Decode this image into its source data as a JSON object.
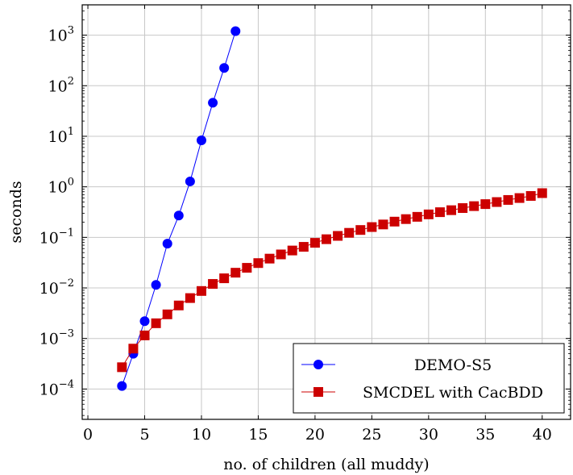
{
  "chart_data": {
    "type": "line",
    "xlabel": "no. of children (all muddy)",
    "ylabel": "seconds",
    "xlim": [
      -0.5,
      42.5
    ],
    "xticks": [
      0,
      5,
      10,
      15,
      20,
      25,
      30,
      35,
      40
    ],
    "yscale": "log",
    "ylim_exp": [
      -4.6,
      3.6
    ],
    "yticks_exp": [
      -4,
      -3,
      -2,
      -1,
      0,
      1,
      2,
      3
    ],
    "grid": true,
    "legend_position": "bottom-right",
    "series": [
      {
        "name": "DEMO-S5",
        "color": "#0000ff",
        "marker": "circle",
        "x": [
          3,
          4,
          5,
          6,
          7,
          8,
          9,
          10,
          11,
          12,
          13
        ],
        "y": [
          0.000115,
          0.0005,
          0.0022,
          0.0115,
          0.075,
          0.27,
          1.28,
          8.3,
          46,
          225,
          1200
        ]
      },
      {
        "name": "SMCDEL with CacBDD",
        "color": "#cc0000",
        "marker": "square",
        "x": [
          3,
          4,
          5,
          6,
          7,
          8,
          9,
          10,
          11,
          12,
          13,
          14,
          15,
          16,
          17,
          18,
          19,
          20,
          21,
          22,
          23,
          24,
          25,
          26,
          27,
          28,
          29,
          30,
          31,
          32,
          33,
          34,
          35,
          36,
          37,
          38,
          39,
          40
        ],
        "y": [
          0.00027,
          0.00063,
          0.00115,
          0.002,
          0.003,
          0.0045,
          0.0063,
          0.0087,
          0.012,
          0.0155,
          0.02,
          0.025,
          0.031,
          0.038,
          0.046,
          0.055,
          0.065,
          0.078,
          0.092,
          0.107,
          0.123,
          0.14,
          0.16,
          0.18,
          0.205,
          0.23,
          0.255,
          0.285,
          0.315,
          0.345,
          0.38,
          0.415,
          0.455,
          0.5,
          0.55,
          0.6,
          0.66,
          0.75
        ]
      }
    ]
  }
}
